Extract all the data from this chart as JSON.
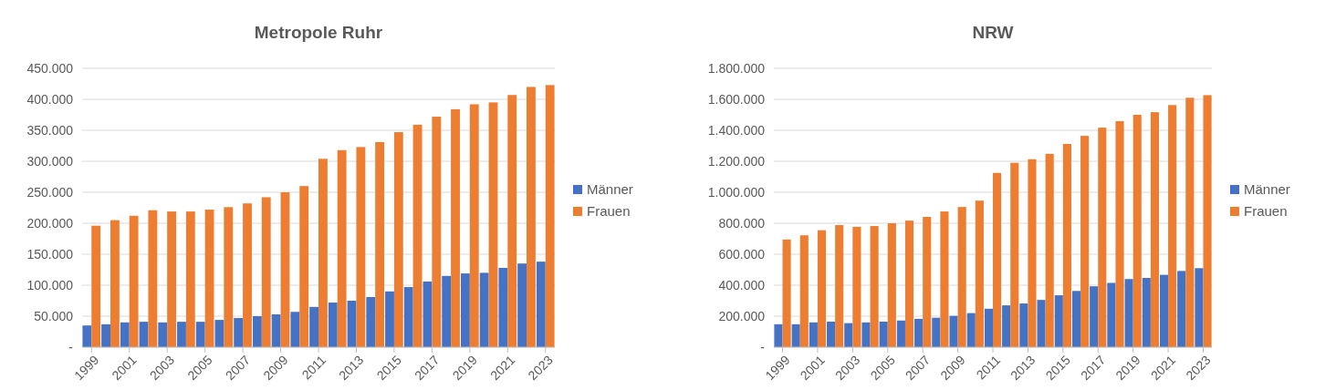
{
  "chart_data": [
    {
      "type": "bar",
      "title": "Metropole Ruhr",
      "categories": [
        "1999",
        null,
        "2001",
        null,
        "2003",
        null,
        "2005",
        null,
        "2007",
        null,
        "2009",
        null,
        "2011",
        null,
        "2013",
        null,
        "2015",
        null,
        "2017",
        null,
        "2019",
        null,
        "2021",
        null,
        "2023"
      ],
      "series": [
        {
          "name": "Männer",
          "color": "#4472c4",
          "values": [
            35000,
            37000,
            40000,
            41000,
            40000,
            41000,
            41000,
            44000,
            47000,
            50000,
            53000,
            57000,
            65000,
            72000,
            75000,
            81000,
            90000,
            97000,
            106000,
            115000,
            119000,
            120000,
            128000,
            135000,
            138000
          ]
        },
        {
          "name": "Frauen",
          "color": "#ed7d31",
          "values": [
            196000,
            205000,
            212000,
            221000,
            219000,
            219000,
            222000,
            226000,
            232000,
            242000,
            250000,
            260000,
            304000,
            318000,
            323000,
            331000,
            347000,
            359000,
            372000,
            384000,
            392000,
            395000,
            407000,
            420000,
            423000
          ]
        }
      ],
      "ylim": [
        0,
        450000
      ],
      "yticks": [
        {
          "value": 0,
          "label": "-"
        },
        {
          "value": 50000,
          "label": "50.000"
        },
        {
          "value": 100000,
          "label": "100.000"
        },
        {
          "value": 150000,
          "label": "150.000"
        },
        {
          "value": 200000,
          "label": "200.000"
        },
        {
          "value": 250000,
          "label": "250.000"
        },
        {
          "value": 300000,
          "label": "300.000"
        },
        {
          "value": 350000,
          "label": "350.000"
        },
        {
          "value": 400000,
          "label": "400.000"
        },
        {
          "value": 450000,
          "label": "450.000"
        }
      ],
      "grid": "y",
      "legend": "right"
    },
    {
      "type": "bar",
      "title": "NRW",
      "categories": [
        "1999",
        null,
        "2001",
        null,
        "2003",
        null,
        "2005",
        null,
        "2007",
        null,
        "2009",
        null,
        "2011",
        null,
        "2013",
        null,
        "2015",
        null,
        "2017",
        null,
        "2019",
        null,
        "2021",
        null,
        "2023"
      ],
      "series": [
        {
          "name": "Männer",
          "color": "#4472c4",
          "values": [
            148000,
            148000,
            160000,
            165000,
            155000,
            160000,
            165000,
            172000,
            183000,
            190000,
            202000,
            220000,
            248000,
            270000,
            282000,
            305000,
            335000,
            363000,
            393000,
            415000,
            440000,
            447000,
            467000,
            492000,
            510000
          ]
        },
        {
          "name": "Frauen",
          "color": "#ed7d31",
          "values": [
            695000,
            722000,
            755000,
            788000,
            777000,
            782000,
            800000,
            817000,
            841000,
            876000,
            905000,
            946000,
            1125000,
            1190000,
            1213000,
            1248000,
            1312000,
            1364000,
            1417000,
            1459000,
            1500000,
            1517000,
            1563000,
            1610000,
            1627000
          ]
        }
      ],
      "ylim": [
        0,
        1800000
      ],
      "yticks": [
        {
          "value": 0,
          "label": "-"
        },
        {
          "value": 200000,
          "label": "200.000"
        },
        {
          "value": 400000,
          "label": "400.000"
        },
        {
          "value": 600000,
          "label": "600.000"
        },
        {
          "value": 800000,
          "label": "800.000"
        },
        {
          "value": 1000000,
          "label": "1.000.000"
        },
        {
          "value": 1200000,
          "label": "1.200.000"
        },
        {
          "value": 1400000,
          "label": "1.400.000"
        },
        {
          "value": 1600000,
          "label": "1.600.000"
        },
        {
          "value": 1800000,
          "label": "1.800.000"
        }
      ],
      "grid": "y",
      "legend": "right"
    }
  ]
}
